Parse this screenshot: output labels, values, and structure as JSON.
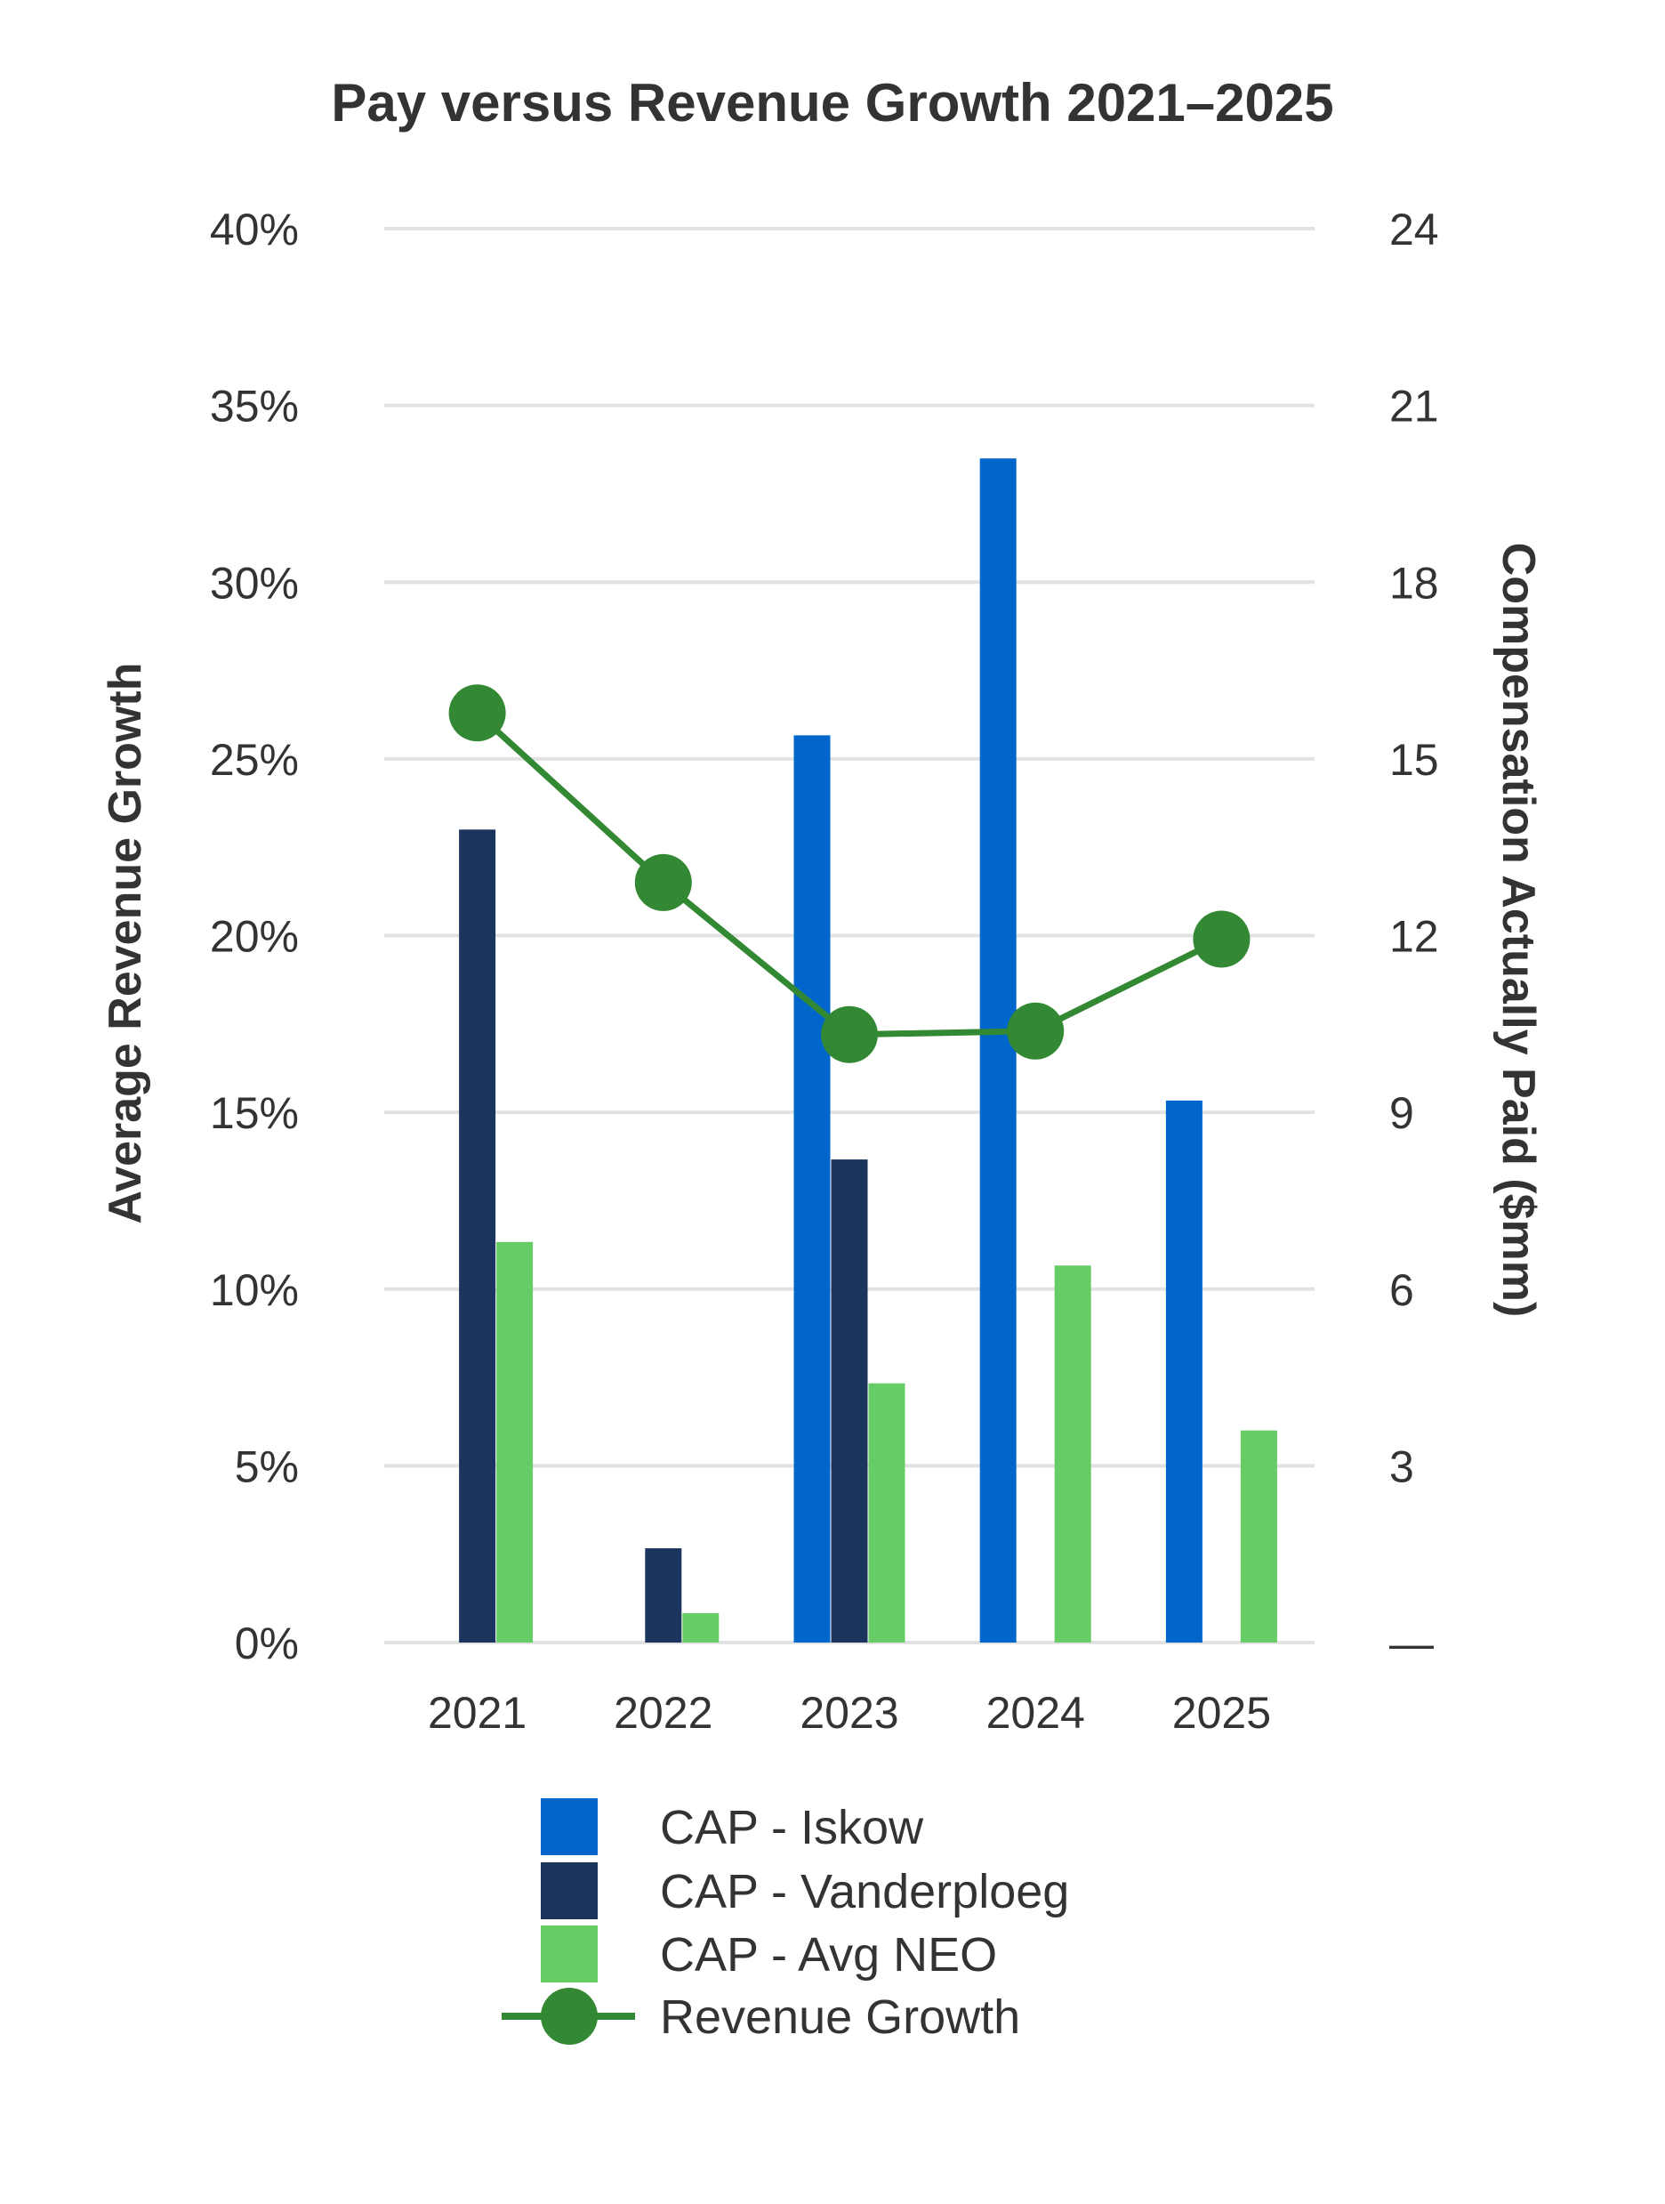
{
  "chart_data": {
    "type": "bar",
    "title": "Pay versus Revenue Growth 2021–2025",
    "categories": [
      "2021",
      "2022",
      "2023",
      "2024",
      "2025"
    ],
    "y_left": {
      "label": "Average Revenue Growth",
      "range": [
        0,
        40
      ],
      "ticks": [
        "0%",
        "5%",
        "10%",
        "15%",
        "20%",
        "25%",
        "30%",
        "35%",
        "40%"
      ]
    },
    "y_right": {
      "label": "Compensation Actually Paid ($mm)",
      "range": [
        0,
        24
      ],
      "ticks": [
        "—",
        "3",
        "6",
        "9",
        "12",
        "15",
        "18",
        "21",
        "24"
      ]
    },
    "bar_series": [
      {
        "name": "CAP - Iskow",
        "color": "#0066CC",
        "values": [
          null,
          null,
          15.4,
          20.1,
          9.2
        ]
      },
      {
        "name": "CAP - Vanderploeg",
        "color": "#1C355E",
        "values": [
          13.8,
          1.6,
          8.2,
          null,
          null
        ]
      },
      {
        "name": "CAP - Avg NEO",
        "color": "#66CC66",
        "values": [
          6.8,
          0.5,
          4.4,
          6.4,
          3.6
        ]
      }
    ],
    "line_series": {
      "name": "Revenue Growth",
      "color": "#338833",
      "axis": "left",
      "values": [
        26.3,
        21.5,
        17.2,
        17.3,
        19.9
      ]
    },
    "grid": true,
    "legend_position": "bottom"
  }
}
